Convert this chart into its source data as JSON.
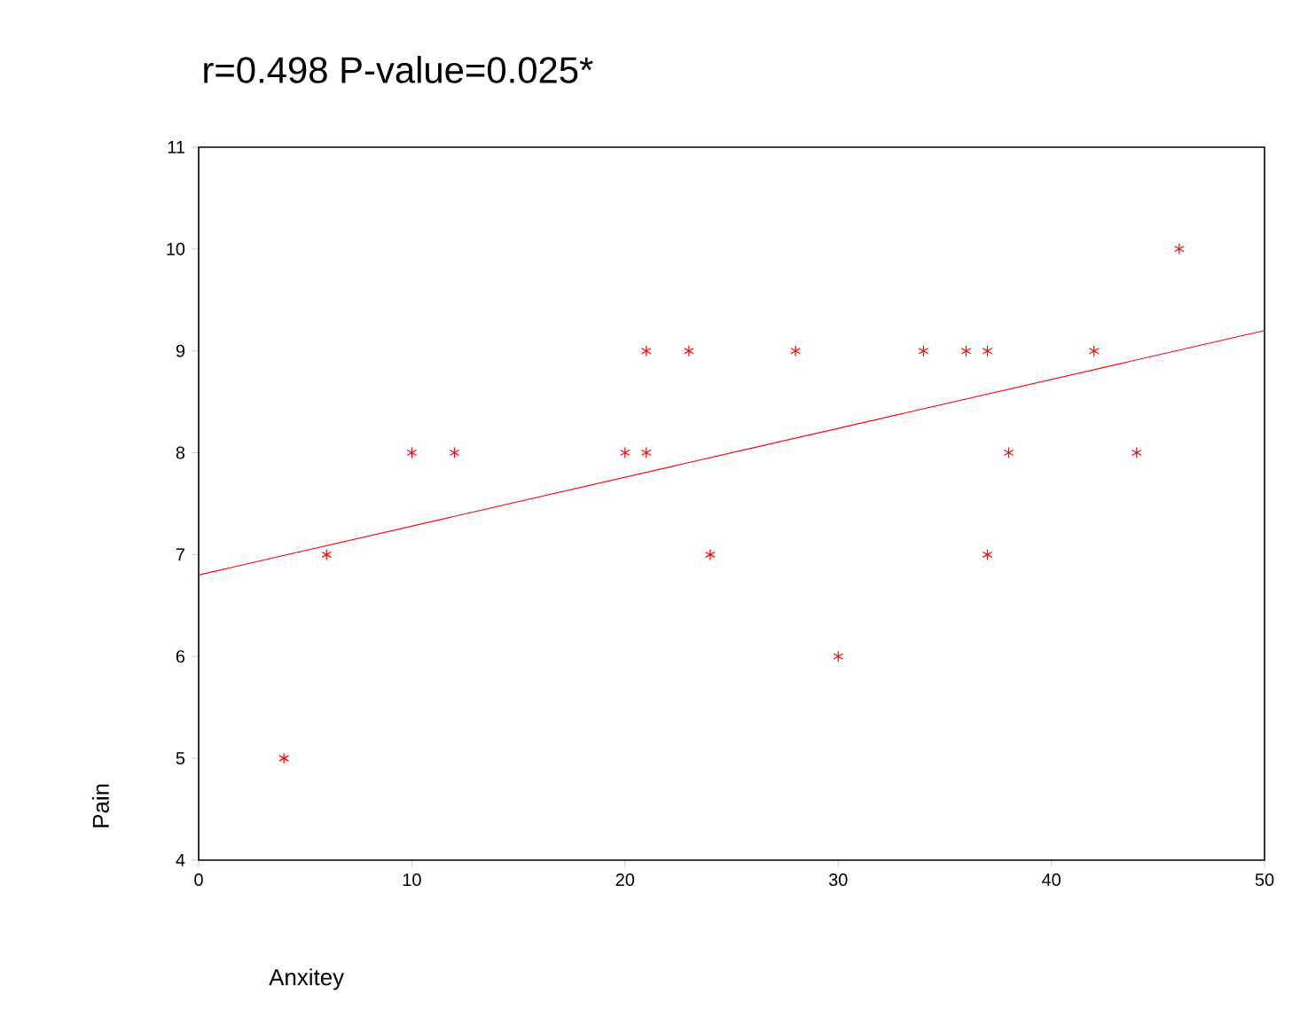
{
  "chart_data": {
    "type": "scatter",
    "title": "r=0.498      P-value=0.025*",
    "xlabel": "Anxitey",
    "ylabel": "Pain",
    "xlim": [
      0,
      50
    ],
    "ylim": [
      4,
      11
    ],
    "xticks": [
      0,
      10,
      20,
      30,
      40,
      50
    ],
    "yticks": [
      4,
      5,
      6,
      7,
      8,
      9,
      10,
      11
    ],
    "grid": false,
    "series": [
      {
        "color": "#ff0000",
        "marker": "cross",
        "x": [
          4,
          6,
          10,
          12,
          20,
          21,
          21,
          23,
          24,
          28,
          30,
          34,
          36,
          37,
          37,
          38,
          42,
          44,
          46
        ],
        "values": [
          5,
          7,
          8,
          8,
          8,
          8,
          9,
          9,
          7,
          9,
          6,
          9,
          9,
          9,
          7,
          8,
          9,
          8,
          10
        ]
      },
      {
        "type": "line",
        "color": "#ff0000",
        "marker": "none",
        "x": [
          0,
          50
        ],
        "values": [
          6.8,
          9.2
        ]
      }
    ]
  }
}
